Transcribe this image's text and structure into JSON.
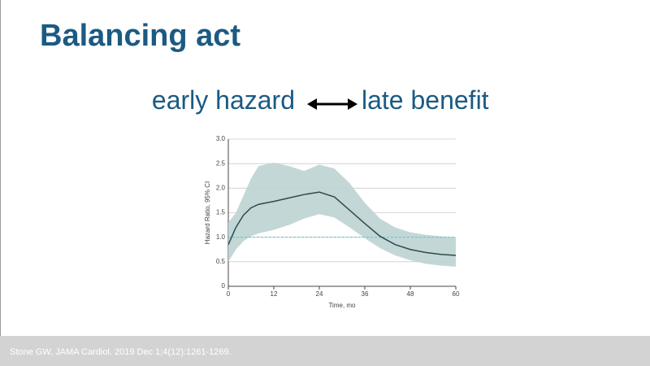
{
  "slide": {
    "title": "Balancing act",
    "left_text": "early hazard",
    "right_text": "late benefit",
    "footer": "Stone GW, JAMA Cardiol. 2019 Dec 1;4(12):1261-1269."
  },
  "chart_data": {
    "type": "line",
    "x_label": "Time, mo",
    "y_label": "Hazard Ratio, 95% CI",
    "x": [
      0,
      2,
      4,
      6,
      8,
      12,
      16,
      20,
      24,
      28,
      32,
      36,
      40,
      44,
      48,
      52,
      56,
      60
    ],
    "values": [
      0.85,
      1.2,
      1.45,
      1.6,
      1.67,
      1.73,
      1.8,
      1.87,
      1.92,
      1.82,
      1.55,
      1.28,
      1.02,
      0.85,
      0.75,
      0.69,
      0.65,
      0.63
    ],
    "upper": [
      1.3,
      1.5,
      1.85,
      2.2,
      2.45,
      2.52,
      2.45,
      2.35,
      2.48,
      2.4,
      2.1,
      1.7,
      1.38,
      1.2,
      1.1,
      1.05,
      1.02,
      1.0
    ],
    "lower": [
      0.5,
      0.75,
      0.92,
      1.02,
      1.08,
      1.15,
      1.25,
      1.38,
      1.47,
      1.4,
      1.2,
      0.98,
      0.78,
      0.63,
      0.53,
      0.46,
      0.42,
      0.4
    ],
    "color": "#2e4b4b",
    "band_color": "#bcd3d3",
    "reference_line": 1,
    "reference_color": "#5cc8d0",
    "xlim": [
      0,
      60
    ],
    "xticks": [
      0,
      12,
      24,
      36,
      48,
      60
    ],
    "ylim": [
      0,
      3
    ],
    "yticks": [
      0,
      0.5,
      {
        "value": 1,
        "label": "1.0"
      },
      1.5,
      {
        "value": 2,
        "label": "2.0"
      },
      2.5,
      {
        "value": 3,
        "label": "3.0"
      }
    ],
    "grid": true
  }
}
